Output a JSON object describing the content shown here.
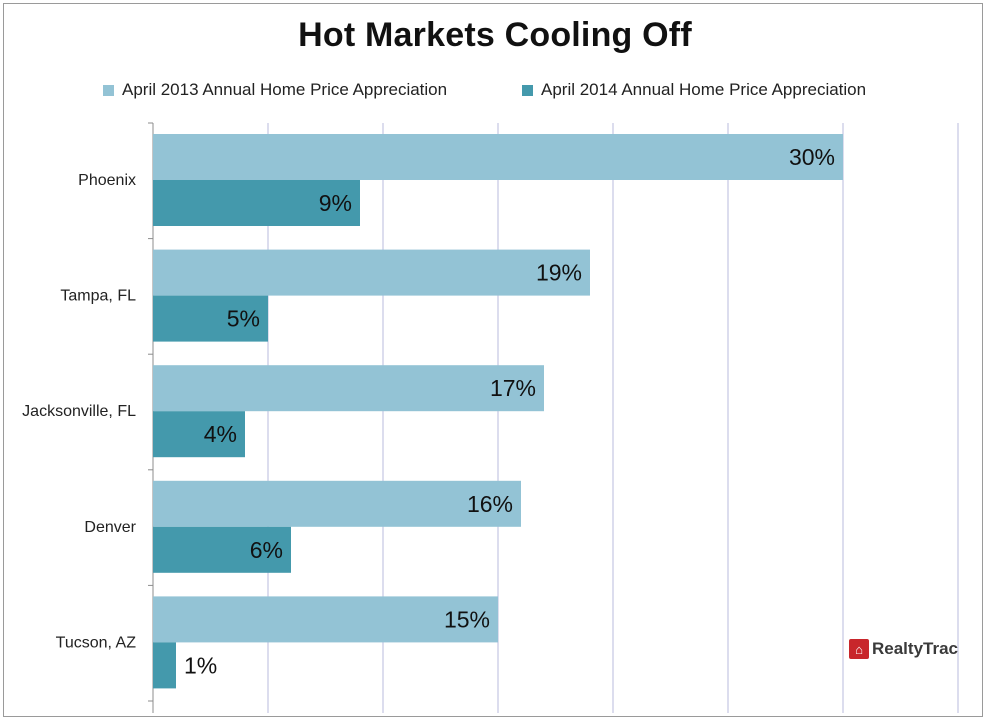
{
  "chart_data": {
    "type": "bar",
    "orientation": "horizontal",
    "title": "Hot Markets Cooling Off",
    "categories": [
      "Phoenix",
      "Tampa, FL",
      "Jacksonville, FL",
      "Denver",
      "Tucson, AZ"
    ],
    "series": [
      {
        "name": "April 2013 Annual Home Price Appreciation",
        "color": "#93c3d5",
        "values": [
          30,
          19,
          17,
          16,
          15
        ],
        "labels": [
          "30%",
          "19%",
          "17%",
          "16%",
          "15%"
        ]
      },
      {
        "name": "April 2014 Annual Home Price Appreciation",
        "color": "#4499ac",
        "values": [
          9,
          5,
          4,
          6,
          1
        ],
        "labels": [
          "9%",
          "5%",
          "4%",
          "6%",
          "1%"
        ]
      }
    ],
    "xlim": [
      0,
      35
    ],
    "grid": true,
    "legend_position": "top"
  },
  "branding": {
    "logo_text": "RealtyTrac",
    "logo_mark": "⌂",
    "logo_color": "#c8262b"
  }
}
